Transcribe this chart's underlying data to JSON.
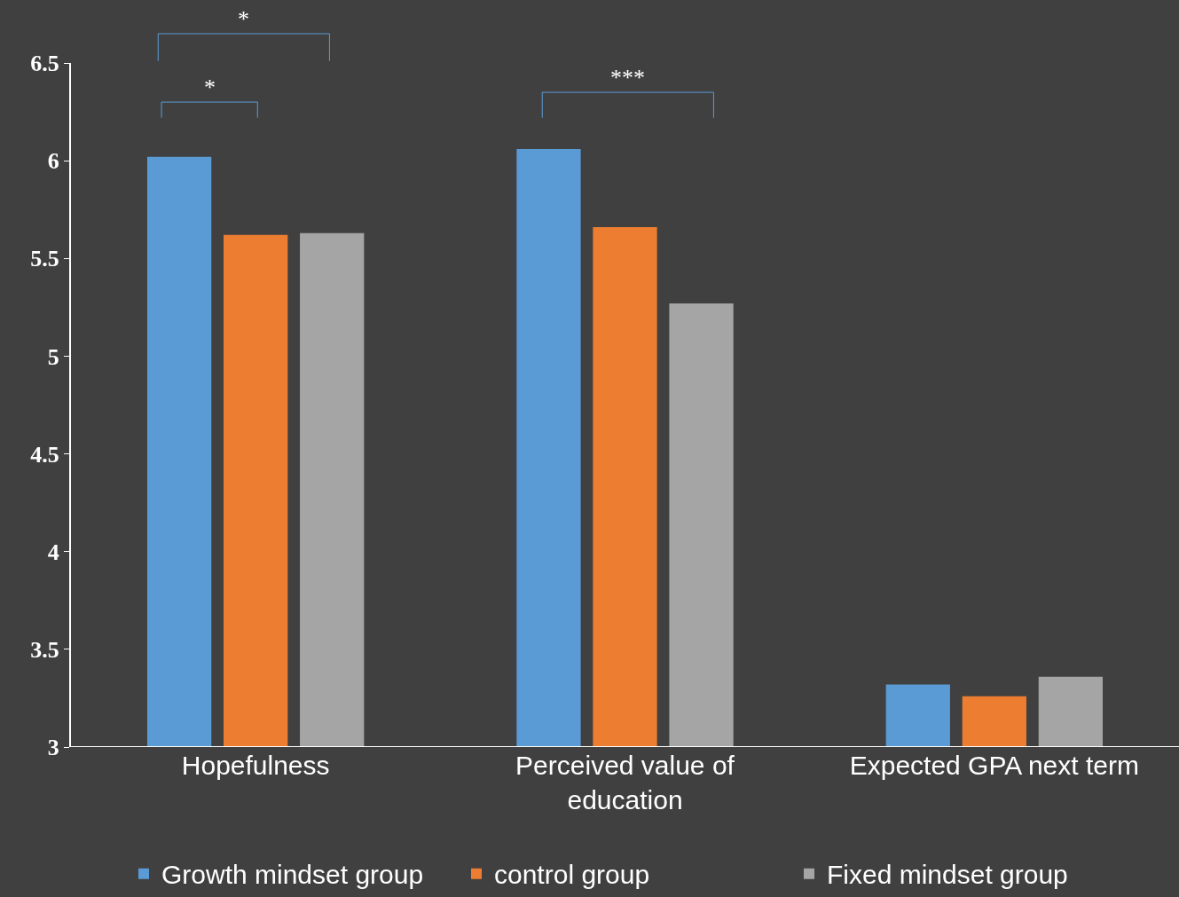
{
  "chart_data": {
    "type": "bar",
    "categories": [
      "Hopefulness",
      "Perceived value of education",
      "Expected GPA next term"
    ],
    "series": [
      {
        "name": "Growth mindset group",
        "color": "#5b9bd5",
        "values": [
          6.02,
          6.06,
          3.32
        ]
      },
      {
        "name": "control group",
        "color": "#ed7d31",
        "values": [
          5.62,
          5.66,
          3.26
        ]
      },
      {
        "name": "Fixed mindset group",
        "color": "#a5a5a5",
        "values": [
          5.63,
          5.27,
          3.36
        ]
      }
    ],
    "ylim": [
      3,
      6.5
    ],
    "yticks": [
      3,
      3.5,
      4,
      4.5,
      5,
      5.5,
      6,
      6.5
    ],
    "legend": "bottom",
    "annotations": [
      "*",
      "*",
      "***"
    ]
  }
}
